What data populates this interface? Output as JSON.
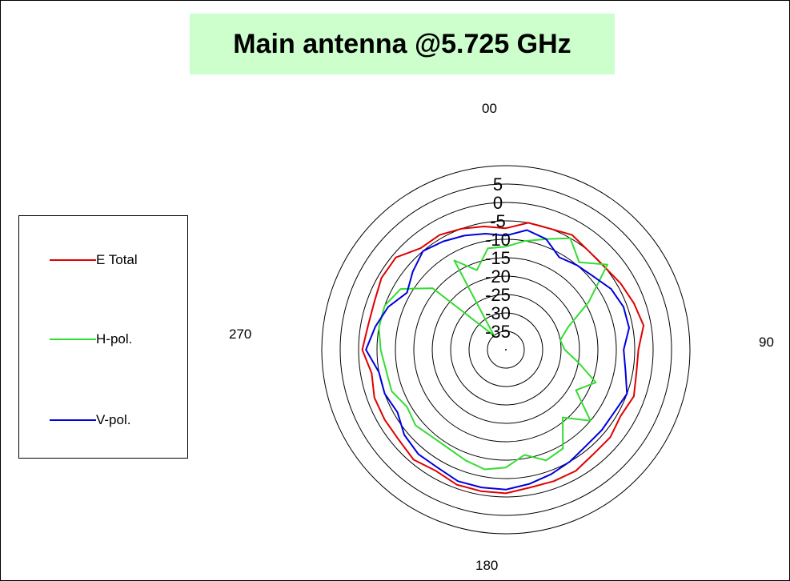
{
  "chart_data": {
    "type": "polar",
    "title": "Main antenna @5.725 GHz",
    "angle_labels": {
      "top": "00",
      "right": "90",
      "bottom": "180",
      "left": "270"
    },
    "radial_ticks": [
      "5",
      "0",
      "-5",
      "-10",
      "-15",
      "-20",
      "-25",
      "-30",
      "-35"
    ],
    "rlim": [
      -40,
      10
    ],
    "grid": true,
    "legend_position": "left",
    "series": [
      {
        "name": "E Total",
        "color": "#e00000",
        "angles": [
          0,
          10,
          20,
          30,
          40,
          50,
          60,
          70,
          80,
          90,
          100,
          110,
          120,
          130,
          140,
          150,
          160,
          170,
          180,
          190,
          200,
          210,
          220,
          230,
          240,
          250,
          260,
          270,
          280,
          290,
          300,
          310,
          320,
          330,
          340,
          350
        ],
        "values": [
          -7,
          -5,
          -5,
          -4,
          -5,
          -5,
          -4,
          -3,
          -2,
          -4,
          -4,
          -3,
          -4,
          -3,
          -3,
          -2,
          -2,
          -2,
          -1,
          -1,
          -1,
          -2,
          -1,
          -2,
          -2,
          -2,
          -3,
          -1,
          -2,
          -2,
          -1,
          -1,
          -4,
          -4,
          -5,
          -6
        ]
      },
      {
        "name": "H-pol.",
        "color": "#33dd33",
        "angles": [
          0,
          10,
          20,
          30,
          40,
          50,
          60,
          70,
          80,
          90,
          100,
          110,
          120,
          130,
          140,
          150,
          160,
          170,
          180,
          190,
          200,
          210,
          220,
          230,
          240,
          250,
          260,
          270,
          280,
          290,
          300,
          310,
          320,
          330,
          340,
          350
        ],
        "values": [
          -12,
          -10,
          -8,
          -5,
          -9,
          -4,
          -14,
          -22,
          -25,
          -24,
          -20,
          -14,
          -18,
          -10,
          -16,
          -9,
          -8,
          -11,
          -8,
          -7,
          -8,
          -9,
          -9,
          -8,
          -9,
          -7,
          -7,
          -6,
          -5,
          -5,
          -7,
          -14,
          -35,
          -12,
          -17,
          -12
        ]
      },
      {
        "name": "V-pol.",
        "color": "#0000dd",
        "angles": [
          0,
          10,
          20,
          30,
          40,
          50,
          60,
          70,
          80,
          90,
          100,
          110,
          120,
          130,
          140,
          150,
          160,
          170,
          180,
          190,
          200,
          210,
          220,
          230,
          240,
          250,
          260,
          270,
          280,
          290,
          300,
          310,
          320,
          330,
          340,
          350
        ],
        "values": [
          -9,
          -7,
          -8,
          -11,
          -10,
          -9,
          -7,
          -6,
          -6,
          -8,
          -7,
          -5,
          -6,
          -6,
          -6,
          -5,
          -4,
          -3,
          -2,
          -2,
          -2,
          -3,
          -3,
          -4,
          -6,
          -5,
          -5,
          -2,
          -4,
          -6,
          -9,
          -7,
          -5,
          -6,
          -7,
          -8
        ]
      }
    ]
  }
}
